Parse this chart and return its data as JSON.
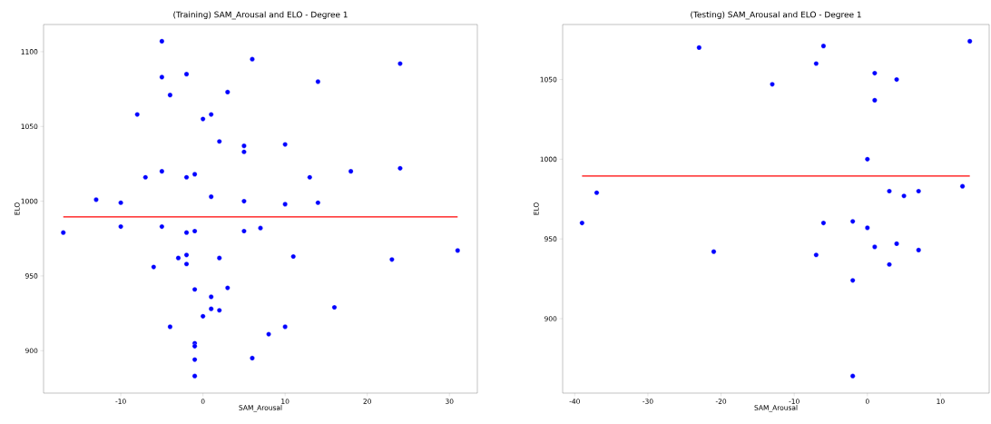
{
  "chart_data": [
    {
      "type": "scatter",
      "title": "(Training) SAM_Arousal and ELO - Degree 1",
      "xlabel": "SAM_Arousal",
      "ylabel": "ELO",
      "xlim": [
        -19.4,
        33.4
      ],
      "ylim": [
        871.6,
        1118.2
      ],
      "xticks": [
        -10,
        0,
        10,
        20,
        30
      ],
      "yticks": [
        900,
        950,
        1000,
        1050,
        1100
      ],
      "series": [
        {
          "type": "scatter",
          "marker": "circle",
          "color": "#0000ff",
          "x": [
            -5,
            -5,
            -2,
            -4,
            3,
            -8,
            1,
            0,
            2,
            5,
            5,
            -7,
            -5,
            -2,
            -1,
            -13,
            -10,
            1,
            5,
            -17,
            -10,
            -5,
            -2,
            -1,
            5,
            -3,
            -2,
            -2,
            -6,
            2,
            -1,
            3,
            1,
            1,
            2,
            0,
            -4,
            -1,
            -1,
            -1,
            -1,
            6,
            24,
            14,
            10,
            13,
            18,
            24,
            10,
            14,
            7,
            11,
            23,
            31,
            16,
            10,
            8,
            6
          ],
          "values": [
            1107,
            1083,
            1085,
            1071,
            1073,
            1058,
            1058,
            1055,
            1040,
            1037,
            1033,
            1016,
            1020,
            1016,
            1018,
            1001,
            999,
            1003,
            1000,
            979,
            983,
            983,
            979,
            980,
            980,
            962,
            964,
            958,
            956,
            962,
            941,
            942,
            936,
            928,
            927,
            923,
            916,
            905,
            903,
            894,
            883,
            1095,
            1092,
            1080,
            1038,
            1016,
            1020,
            1022,
            998,
            999,
            982,
            963,
            961,
            967,
            929,
            916,
            911,
            895
          ]
        },
        {
          "type": "line",
          "marker": "none",
          "color": "#ff0000",
          "x": [
            -17,
            31
          ],
          "values": [
            989.5,
            989.5
          ]
        }
      ]
    },
    {
      "type": "scatter",
      "title": "(Testing) SAM_Arousal and ELO - Degree 1",
      "xlabel": "SAM_Arousal",
      "ylabel": "ELO",
      "xlim": [
        -41.65,
        16.65
      ],
      "ylim": [
        853.3,
        1084.5
      ],
      "xticks": [
        -40,
        -30,
        -20,
        -10,
        0,
        10
      ],
      "yticks": [
        900,
        950,
        1000,
        1050
      ],
      "series": [
        {
          "type": "scatter",
          "marker": "circle",
          "color": "#0000ff",
          "x": [
            -39,
            -37,
            -23,
            -21,
            -13,
            -7,
            -6,
            1,
            4,
            1,
            14,
            0,
            13,
            3,
            5,
            7,
            -6,
            -2,
            0,
            4,
            1,
            7,
            -7,
            3,
            -2,
            -2
          ],
          "values": [
            960,
            979,
            1070,
            942,
            1047,
            1060,
            1071,
            1054,
            1050,
            1037,
            1074,
            1000,
            983,
            980,
            977,
            980,
            960,
            961,
            957,
            947,
            945,
            943,
            940,
            934,
            924,
            864
          ]
        },
        {
          "type": "line",
          "marker": "none",
          "color": "#ff0000",
          "x": [
            -39,
            14
          ],
          "values": [
            989.5,
            989.5
          ]
        }
      ]
    }
  ]
}
